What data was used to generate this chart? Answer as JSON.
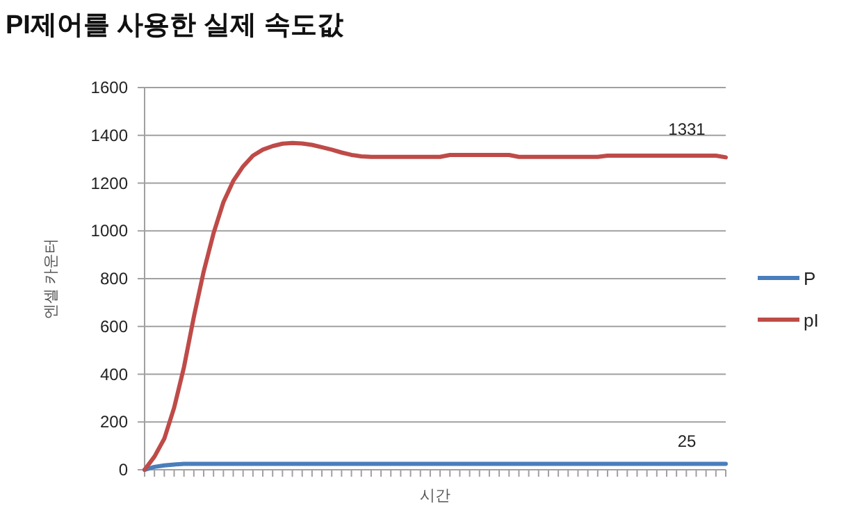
{
  "chart_data": {
    "type": "line",
    "title": "PI제어를 사용한 실제 속도값",
    "xlabel": "시간",
    "ylabel": "엔셀 카운터",
    "categories": [
      null,
      null,
      null,
      null,
      null,
      null,
      null,
      null,
      null,
      null,
      null,
      null,
      null,
      null,
      null,
      null,
      null,
      null,
      null,
      null,
      null,
      null,
      null,
      null,
      null,
      null,
      null,
      null,
      null,
      null,
      null,
      null,
      null,
      null,
      null,
      null,
      null,
      null,
      null,
      null,
      null,
      null,
      null,
      null,
      null,
      null,
      null,
      null,
      null,
      null,
      null,
      null,
      null,
      null,
      null,
      null,
      null,
      null,
      null,
      null
    ],
    "series": [
      {
        "name": "P",
        "color": "#4a7ebb",
        "values": [
          0,
          12,
          18,
          22,
          25,
          25,
          25,
          25,
          25,
          25,
          25,
          25,
          25,
          25,
          25,
          25,
          25,
          25,
          25,
          25,
          25,
          25,
          25,
          25,
          25,
          25,
          25,
          25,
          25,
          25,
          25,
          25,
          25,
          25,
          25,
          25,
          25,
          25,
          25,
          25,
          25,
          25,
          25,
          25,
          25,
          25,
          25,
          25,
          25,
          25,
          25,
          25,
          25,
          25,
          25,
          25,
          25,
          25,
          25,
          25
        ]
      },
      {
        "name": "pI",
        "color": "#be4b48",
        "values": [
          0,
          55,
          130,
          260,
          430,
          640,
          830,
          990,
          1120,
          1209,
          1270,
          1315,
          1340,
          1355,
          1365,
          1368,
          1366,
          1360,
          1350,
          1340,
          1328,
          1318,
          1312,
          1310,
          1310,
          1310,
          1310,
          1310,
          1310,
          1310,
          1310,
          1318,
          1318,
          1318,
          1318,
          1318,
          1318,
          1318,
          1310,
          1310,
          1310,
          1310,
          1310,
          1310,
          1310,
          1310,
          1310,
          1315,
          1315,
          1315,
          1315,
          1315,
          1315,
          1315,
          1315,
          1315,
          1315,
          1315,
          1315,
          1308
        ]
      }
    ],
    "ylim": [
      0,
      1600
    ],
    "yticks": [
      0,
      200,
      400,
      600,
      800,
      1000,
      1200,
      1400,
      1600
    ],
    "annotations": [
      {
        "text": "1331",
        "y": 1331
      },
      {
        "text": "25",
        "y": 25
      }
    ],
    "grid": "y",
    "legend": "right",
    "marker": "none",
    "line_style": "solid"
  }
}
